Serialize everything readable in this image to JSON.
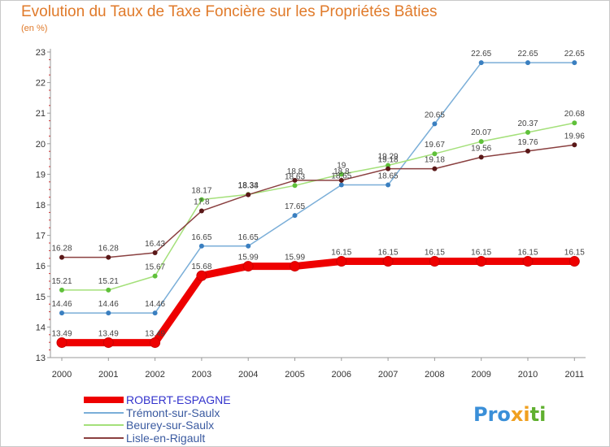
{
  "chart_data": {
    "type": "line",
    "title": "Evolution du Taux de Taxe Foncière sur les Propriétés Bâties",
    "ylabel": "(en %)",
    "xlabel": "",
    "categories": [
      "2000",
      "2001",
      "2002",
      "2003",
      "2004",
      "2005",
      "2006",
      "2007",
      "2008",
      "2009",
      "2010",
      "2011"
    ],
    "ylim": [
      13,
      23
    ],
    "yticks": [
      "13",
      "14",
      "15",
      "16",
      "17",
      "18",
      "19",
      "20",
      "21",
      "22",
      "23"
    ],
    "series": [
      {
        "name": "ROBERT-ESPAGNE",
        "color": "#ee0000",
        "style": "thick",
        "values": [
          13.49,
          13.49,
          13.49,
          15.68,
          15.99,
          15.99,
          16.15,
          16.15,
          16.15,
          16.15,
          16.15,
          16.15
        ],
        "labels": [
          "13.49",
          "13.49",
          "13.49",
          "15.68",
          "15.99",
          "15.99",
          "16.15",
          "16.15",
          "16.15",
          "16.15",
          "16.15",
          "16.15"
        ]
      },
      {
        "name": "Trémont-sur-Saulx",
        "color": "#7aaed8",
        "marker": "#3a7fc0",
        "style": "thin",
        "values": [
          14.46,
          14.46,
          14.46,
          16.65,
          16.65,
          17.65,
          18.65,
          18.65,
          20.65,
          22.65,
          22.65,
          22.65
        ],
        "labels": [
          "14.46",
          "14.46",
          "14.46",
          "16.65",
          "16.65",
          "17.65",
          "18.65",
          "18.65",
          "20.65",
          "22.65",
          "22.65",
          "22.65"
        ]
      },
      {
        "name": "Beurey-sur-Saulx",
        "color": "#a4e07a",
        "marker": "#5fc03a",
        "style": "thin",
        "values": [
          15.21,
          15.21,
          15.67,
          18.17,
          18.34,
          18.63,
          19,
          19.29,
          19.67,
          20.07,
          20.37,
          20.68
        ],
        "labels": [
          "15.21",
          "15.21",
          "15.67",
          "18.17",
          "18.34",
          "18.63",
          "19",
          "19.29",
          "19.67",
          "20.07",
          "20.37",
          "20.68"
        ]
      },
      {
        "name": "Lisle-en-Rigault",
        "color": "#8a4040",
        "marker": "#5a1818",
        "style": "thin",
        "values": [
          16.28,
          16.28,
          16.43,
          17.8,
          18.33,
          18.8,
          18.8,
          19.18,
          19.18,
          19.56,
          19.76,
          19.96
        ],
        "labels": [
          "16.28",
          "16.28",
          "16.43",
          "17.8",
          "18.33",
          "18.8",
          "18.8",
          "19.18",
          "19.18",
          "19.56",
          "19.76",
          "19.96"
        ]
      }
    ],
    "legend": "bottom-left",
    "grid": false
  },
  "brand": {
    "part1": "Pro",
    "part2": "x",
    "part3": "i",
    "part4": "ti",
    "colors": [
      "#3a8fd8",
      "#f0a020",
      "#60b030"
    ]
  }
}
